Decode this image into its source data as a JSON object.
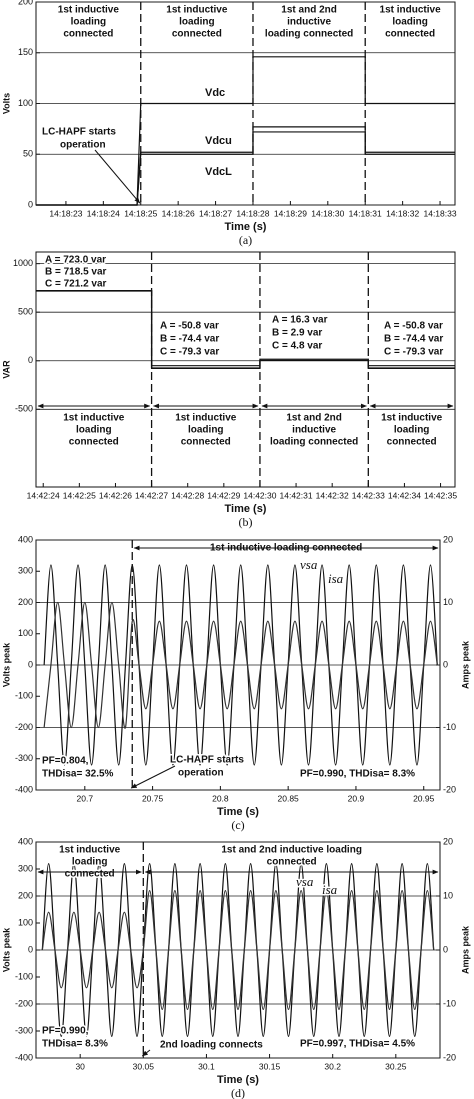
{
  "chart_data": [
    {
      "type": "line",
      "caption": "(a)",
      "x_label": "Time (s)",
      "y_label": "Volts",
      "xlim": [
        22.2,
        33.4
      ],
      "xticks": [
        {
          "value": 23,
          "label": "14:18:23"
        },
        {
          "value": 24,
          "label": "14:18:24"
        },
        {
          "value": 25,
          "label": "14:18:25"
        },
        {
          "value": 26,
          "label": "14:18:26"
        },
        {
          "value": 27,
          "label": "14:18:27"
        },
        {
          "value": 28,
          "label": "14:18:28"
        },
        {
          "value": 29,
          "label": "14:18:29"
        },
        {
          "value": 30,
          "label": "14:18:30"
        },
        {
          "value": 31,
          "label": "14:18:31"
        },
        {
          "value": 32,
          "label": "14:18:32"
        },
        {
          "value": 33,
          "label": "14:18:33"
        }
      ],
      "ylim": [
        0,
        200
      ],
      "yticks": [
        0,
        50,
        100,
        150,
        200
      ],
      "grid": true,
      "events": [
        25,
        28,
        31
      ],
      "x": [
        22.2,
        24.9,
        25,
        28,
        28,
        31,
        31,
        33.4
      ],
      "series": [
        {
          "name": "Vdc",
          "color": "#111",
          "values": [
            0,
            0,
            100,
            100,
            146,
            146,
            100,
            100
          ]
        },
        {
          "name": "Vdcu",
          "color": "#111",
          "values": [
            0,
            0,
            52,
            52,
            77,
            77,
            52,
            52
          ]
        },
        {
          "name": "VdcL",
          "color": "#111",
          "values": [
            0,
            0,
            50,
            50,
            72,
            72,
            50,
            50
          ]
        }
      ],
      "regions": [
        [
          "1st inductive",
          "loading",
          "connected"
        ],
        [
          "1st inductive",
          "loading",
          "connected"
        ],
        [
          "1st and 2nd",
          "inductive",
          "loading connected"
        ],
        [
          "1st inductive",
          "loading",
          "connected"
        ]
      ],
      "annotations": [
        "LC-HAPF starts",
        "operation"
      ]
    },
    {
      "type": "line",
      "caption": "(b)",
      "x_label": "Time (s)",
      "y_label": "VAR",
      "xlim": [
        23.8,
        35.4
      ],
      "xticks": [
        {
          "value": 24,
          "label": "14:42:24"
        },
        {
          "value": 25,
          "label": "14:42:25"
        },
        {
          "value": 26,
          "label": "14:42:26"
        },
        {
          "value": 27,
          "label": "14:42:27"
        },
        {
          "value": 28,
          "label": "14:42:28"
        },
        {
          "value": 29,
          "label": "14:42:29"
        },
        {
          "value": 30,
          "label": "14:42:30"
        },
        {
          "value": 31,
          "label": "14:42:31"
        },
        {
          "value": 32,
          "label": "14:42:32"
        },
        {
          "value": 33,
          "label": "14:42:33"
        },
        {
          "value": 34,
          "label": "14:42:34"
        },
        {
          "value": 35,
          "label": "14:42:35"
        }
      ],
      "ylim": [
        -1300,
        1120
      ],
      "yticks": [
        -500,
        0,
        500,
        1000
      ],
      "grid": true,
      "events": [
        27,
        30,
        33
      ],
      "x": [
        23.8,
        27,
        27,
        30,
        30,
        33,
        33,
        35.4
      ],
      "series": [
        {
          "name": "A",
          "color": "#111",
          "values": [
            723.0,
            723.0,
            -50.8,
            -50.8,
            16.3,
            16.3,
            -50.8,
            -50.8
          ]
        },
        {
          "name": "B",
          "color": "#111",
          "values": [
            718.5,
            718.5,
            -74.4,
            -74.4,
            2.9,
            2.9,
            -74.4,
            -74.4
          ]
        },
        {
          "name": "C",
          "color": "#111",
          "values": [
            721.2,
            721.2,
            -79.3,
            -79.3,
            4.8,
            4.8,
            -79.3,
            -79.3
          ]
        }
      ],
      "regions": [
        [
          "1st inductive",
          "loading",
          "connected"
        ],
        [
          "1st inductive",
          "loading",
          "connected"
        ],
        [
          "1st and 2nd",
          "inductive",
          "loading connected"
        ],
        [
          "1st inductive",
          "loading",
          "connected"
        ]
      ],
      "annotations": [
        "A = 723.0 var",
        "B = 718.5 var",
        "C = 721.2 var",
        "A = -50.8 var",
        "B = -74.4 var",
        "C = -79.3 var",
        "A = 16.3 var",
        "B =  2.9 var",
        "C =  4.8 var",
        "A = -50.8 var",
        "B = -74.4 var",
        "C = -79.3 var"
      ]
    },
    {
      "type": "line",
      "caption": "(c)",
      "x_label": "Time (s)",
      "y_label": "Volts peak",
      "y2_label": "Amps peak",
      "smooth": true,
      "xlim": [
        20.664,
        20.962
      ],
      "xticks": [
        20.7,
        20.75,
        20.8,
        20.85,
        20.9,
        20.95
      ],
      "ylim": [
        -400,
        400
      ],
      "yticks": [
        -400,
        -300,
        -200,
        -100,
        0,
        100,
        200,
        300,
        400
      ],
      "y2lim": [
        -20,
        20
      ],
      "y2ticks": [
        -20,
        -10,
        0,
        10,
        20
      ],
      "grid": "y2",
      "events": [
        20.735
      ],
      "x": [
        20.67,
        20.675,
        20.68,
        20.685,
        20.69,
        20.695,
        20.7,
        20.705,
        20.71,
        20.715,
        20.72,
        20.725,
        20.73,
        20.735,
        20.74,
        20.745,
        20.75,
        20.755,
        20.76,
        20.765,
        20.77,
        20.775,
        20.78,
        20.785,
        20.79,
        20.795,
        20.8,
        20.805,
        20.81,
        20.815,
        20.82,
        20.825,
        20.83,
        20.835,
        20.84,
        20.845,
        20.85,
        20.855,
        20.86,
        20.865,
        20.87,
        20.875,
        20.88,
        20.885,
        20.89,
        20.895,
        20.9,
        20.905,
        20.91,
        20.915,
        20.92,
        20.925,
        20.93,
        20.935,
        20.94,
        20.945,
        20.95,
        20.955,
        20.96
      ],
      "series": [
        {
          "name": "vsa",
          "color": "#111",
          "values": [
            0,
            320,
            0,
            -320,
            0,
            320,
            0,
            -320,
            0,
            320,
            0,
            -320,
            0,
            320,
            0,
            -320,
            0,
            320,
            0,
            -320,
            0,
            320,
            0,
            -320,
            0,
            320,
            0,
            -320,
            0,
            320,
            0,
            -320,
            0,
            320,
            0,
            -320,
            0,
            320,
            0,
            -320,
            0,
            320,
            0,
            -320,
            0,
            320,
            0,
            -320,
            0,
            320,
            0,
            -320,
            0,
            320,
            0,
            -320,
            0,
            320,
            0
          ]
        },
        {
          "name": "isa",
          "color": "#333",
          "axis": "y2",
          "values": [
            -10,
            0,
            10,
            0,
            -10,
            0,
            10,
            0,
            -10,
            0,
            10,
            0,
            -10,
            7,
            0,
            -7,
            0,
            7,
            0,
            -7,
            0,
            7,
            0,
            -7,
            0,
            7,
            0,
            -7,
            0,
            7,
            0,
            -7,
            0,
            7,
            0,
            -7,
            0,
            7,
            0,
            -7,
            0,
            7,
            0,
            -7,
            0,
            7,
            0,
            -7,
            0,
            7,
            0,
            -7,
            0,
            7,
            0,
            -7,
            0,
            7,
            0
          ]
        }
      ],
      "regions": [
        [
          "1st inductive loading connected"
        ]
      ],
      "annotations": [
        "PF=0.804,",
        "THDisa= 32.5%",
        "LC-HAPF starts",
        "operation",
        "PF=0.990, THDisa= 8.3%"
      ]
    },
    {
      "type": "line",
      "caption": "(d)",
      "x_label": "Time (s)",
      "y_label": "Volts peak",
      "y2_label": "Amps peak",
      "smooth": true,
      "xlim": [
        29.965,
        30.285
      ],
      "xticks": [
        30,
        30.05,
        30.1,
        30.15,
        30.2,
        30.25
      ],
      "ylim": [
        -400,
        400
      ],
      "yticks": [
        -400,
        -300,
        -200,
        -100,
        0,
        100,
        200,
        300,
        400
      ],
      "y2lim": [
        -20,
        20
      ],
      "y2ticks": [
        -20,
        -10,
        0,
        10,
        20
      ],
      "grid": "y2",
      "events": [
        30.05
      ],
      "x": [
        29.97,
        29.975,
        29.98,
        29.985,
        29.99,
        29.995,
        30,
        30.005,
        30.01,
        30.015,
        30.02,
        30.025,
        30.03,
        30.035,
        30.04,
        30.045,
        30.05,
        30.055,
        30.06,
        30.065,
        30.07,
        30.075,
        30.08,
        30.085,
        30.09,
        30.095,
        30.1,
        30.105,
        30.11,
        30.115,
        30.12,
        30.125,
        30.13,
        30.135,
        30.14,
        30.145,
        30.15,
        30.155,
        30.16,
        30.165,
        30.17,
        30.175,
        30.18,
        30.185,
        30.19,
        30.195,
        30.2,
        30.205,
        30.21,
        30.215,
        30.22,
        30.225,
        30.23,
        30.235,
        30.24,
        30.245,
        30.25,
        30.255,
        30.26,
        30.265,
        30.27,
        30.275,
        30.28
      ],
      "series": [
        {
          "name": "vsa",
          "color": "#111",
          "values": [
            0,
            320,
            0,
            -320,
            0,
            320,
            0,
            -320,
            0,
            320,
            0,
            -320,
            0,
            320,
            0,
            -320,
            0,
            320,
            0,
            -320,
            0,
            320,
            0,
            -320,
            0,
            320,
            0,
            -320,
            0,
            320,
            0,
            -320,
            0,
            320,
            0,
            -320,
            0,
            320,
            0,
            -320,
            0,
            320,
            0,
            -320,
            0,
            320,
            0,
            -320,
            0,
            320,
            0,
            -320,
            0,
            320,
            0,
            -320,
            0,
            320,
            0,
            -320,
            0,
            320,
            0
          ]
        },
        {
          "name": "isa",
          "color": "#333",
          "axis": "y2",
          "values": [
            0,
            7,
            0,
            -7,
            0,
            7,
            0,
            -7,
            0,
            7,
            0,
            -7,
            0,
            7,
            0,
            -7,
            0,
            11,
            0,
            -11,
            0,
            11,
            0,
            -11,
            0,
            11,
            0,
            -11,
            0,
            11,
            0,
            -11,
            0,
            11,
            0,
            -11,
            0,
            11,
            0,
            -11,
            0,
            11,
            0,
            -11,
            0,
            11,
            0,
            -11,
            0,
            11,
            0,
            -11,
            0,
            11,
            0,
            -11,
            0,
            11,
            0,
            -11,
            0,
            11,
            0
          ]
        }
      ],
      "regions": [
        [
          "1st inductive",
          "loading",
          "connected"
        ],
        [
          "1st and 2nd inductive loading",
          "connected"
        ]
      ],
      "annotations": [
        "PF=0.990,",
        "THDisa= 8.3%",
        "2nd loading connects",
        "PF=0.997, THDisa= 4.5%"
      ]
    }
  ]
}
